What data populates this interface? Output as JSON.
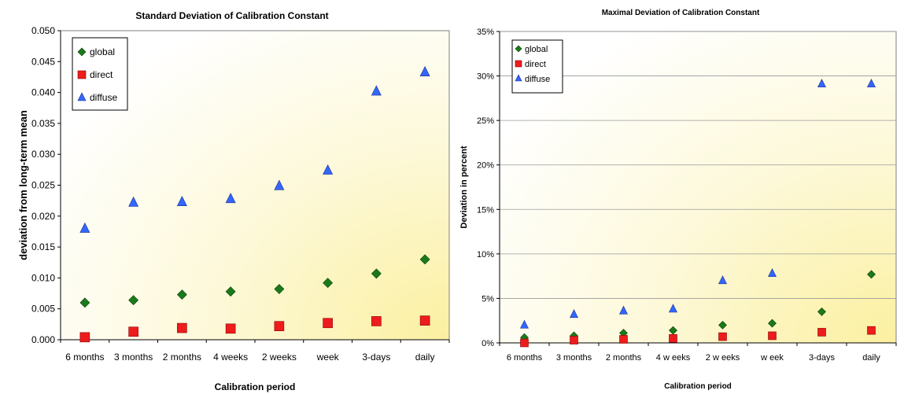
{
  "chart_data": [
    {
      "type": "scatter",
      "title": "Standard Deviation of Calibration Constant",
      "xlabel": "Calibration period",
      "ylabel": "deviation from long-term mean",
      "categories": [
        "6 months",
        "3 months",
        "2 months",
        "4 weeks",
        "2 weeks",
        "week",
        "3-days",
        "daily"
      ],
      "ylim": [
        0,
        0.05
      ],
      "yticks": [
        "0.000",
        "0.005",
        "0.010",
        "0.015",
        "0.020",
        "0.025",
        "0.030",
        "0.035",
        "0.040",
        "0.045",
        "0.050"
      ],
      "grid": false,
      "legend_position": "top-left",
      "series": [
        {
          "name": "global",
          "marker": "diamond",
          "color": "#1a7a1a",
          "values": [
            0.006,
            0.0064,
            0.0073,
            0.0078,
            0.0082,
            0.0092,
            0.0107,
            0.013
          ]
        },
        {
          "name": "direct",
          "marker": "square",
          "color": "#ee1c1c",
          "values": [
            0.0004,
            0.0013,
            0.0019,
            0.0018,
            0.0022,
            0.0027,
            0.003,
            0.0031
          ]
        },
        {
          "name": "diffuse",
          "marker": "triangle",
          "color": "#3366ff",
          "values": [
            0.018,
            0.0222,
            0.0223,
            0.0228,
            0.0249,
            0.0274,
            0.0402,
            0.0433
          ]
        }
      ]
    },
    {
      "type": "scatter",
      "title": "Maximal Deviation of Calibration Constant",
      "xlabel": "Calibration period",
      "ylabel": "Deviation in percent",
      "categories": [
        "6 months",
        "3 months",
        "2 months",
        "4 w eeks",
        "2 w eeks",
        "w eek",
        "3-days",
        "daily"
      ],
      "ylim": [
        0,
        35
      ],
      "yticks": [
        "0%",
        "5%",
        "10%",
        "15%",
        "20%",
        "25%",
        "30%",
        "35%"
      ],
      "grid": true,
      "legend_position": "top-left",
      "series": [
        {
          "name": "global",
          "marker": "diamond",
          "color": "#1a7a1a",
          "values": [
            0.6,
            0.8,
            1.1,
            1.4,
            2.0,
            2.2,
            3.5,
            7.7
          ]
        },
        {
          "name": "direct",
          "marker": "square",
          "color": "#ee1c1c",
          "values": [
            0.0,
            0.3,
            0.4,
            0.5,
            0.7,
            0.8,
            1.2,
            1.4
          ]
        },
        {
          "name": "diffuse",
          "marker": "triangle",
          "color": "#3366ff",
          "values": [
            2.0,
            3.2,
            3.6,
            3.8,
            7.0,
            7.8,
            29.1,
            29.1
          ]
        }
      ]
    }
  ]
}
